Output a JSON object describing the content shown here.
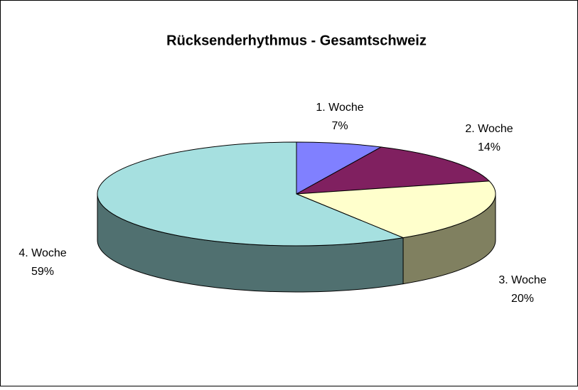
{
  "chart_data": {
    "type": "pie",
    "title": "Rücksenderhythmus - Gesamtschweiz",
    "categories": [
      "1. Woche",
      "2. Woche",
      "3. Woche",
      "4. Woche"
    ],
    "values": [
      7,
      14,
      20,
      59
    ],
    "value_labels": [
      "7%",
      "14%",
      "20%",
      "59%"
    ],
    "colors": [
      "#8080ff",
      "#802060",
      "#ffffcc",
      "#a6e0e0"
    ],
    "side_colors": [
      "#5c5cb8",
      "#5a1744",
      "#808060",
      "#507070"
    ]
  }
}
